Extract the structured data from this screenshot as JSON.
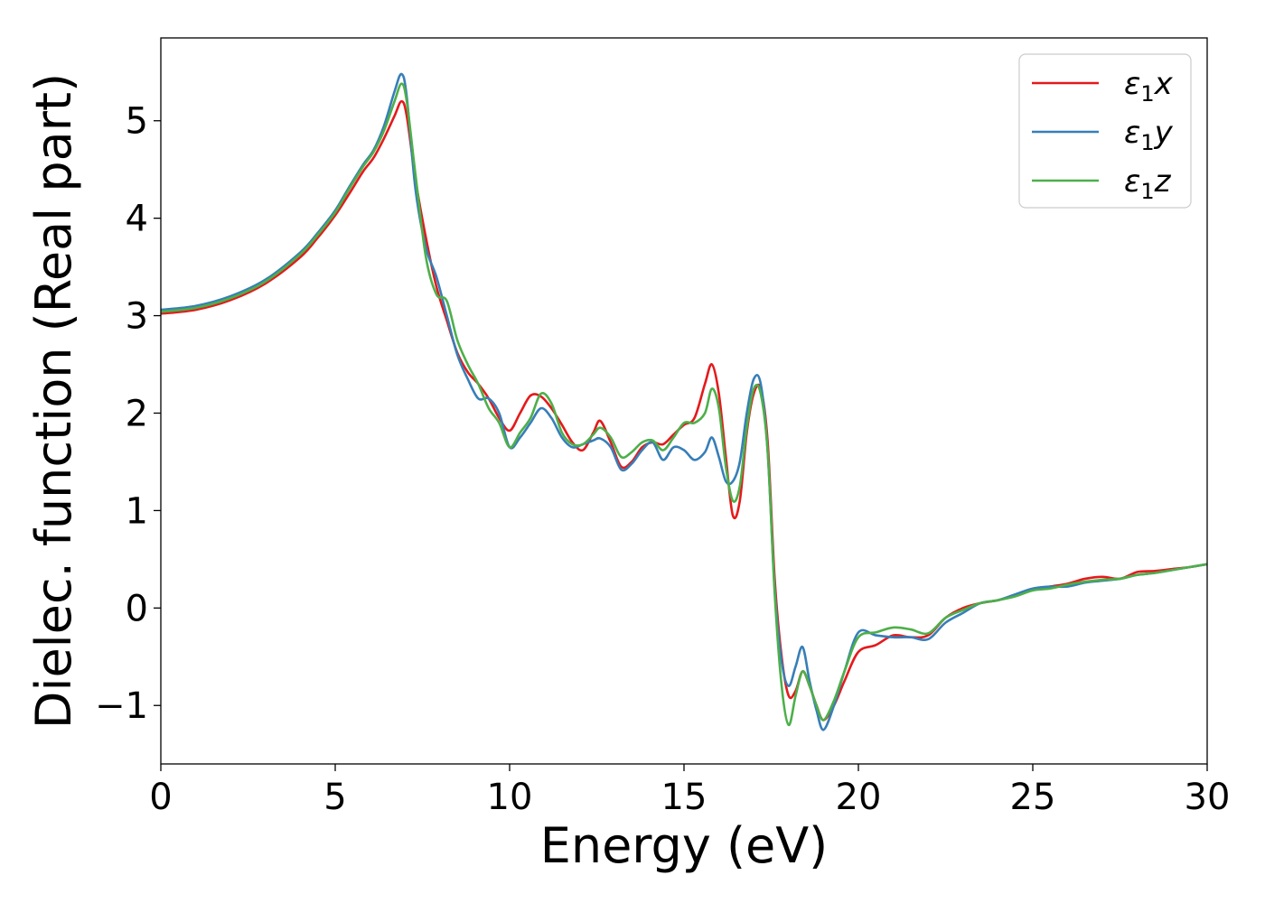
{
  "chart_data": {
    "type": "line",
    "xlabel": "Energy (eV)",
    "ylabel": "Dielec. function (Real part)",
    "xlim": [
      0,
      30
    ],
    "ylim": [
      -1.6,
      5.85
    ],
    "xticks": [
      0,
      5,
      10,
      15,
      20,
      25,
      30
    ],
    "xtick_labels": [
      "0",
      "5",
      "10",
      "15",
      "20",
      "25",
      "30"
    ],
    "yticks": [
      -1,
      0,
      1,
      2,
      3,
      4,
      5
    ],
    "ytick_labels": [
      "−1",
      "0",
      "1",
      "2",
      "3",
      "4",
      "5"
    ],
    "grid": false,
    "legend_position": "top-right",
    "series": [
      {
        "name": "ε₁x",
        "legend_base": "ε",
        "legend_sub": "1",
        "legend_suffix": "x",
        "color": "#e41a1c",
        "x": [
          0,
          1,
          2,
          3,
          4,
          4.5,
          5,
          5.4,
          5.8,
          6.1,
          6.4,
          6.7,
          6.9,
          7.05,
          7.3,
          7.6,
          7.9,
          8.2,
          8.5,
          8.8,
          9.1,
          9.4,
          9.7,
          10.0,
          10.3,
          10.6,
          10.9,
          11.2,
          11.5,
          11.8,
          12.1,
          12.4,
          12.6,
          12.9,
          13.2,
          13.5,
          13.8,
          14.1,
          14.4,
          14.7,
          15.0,
          15.3,
          15.6,
          15.8,
          16.0,
          16.2,
          16.4,
          16.6,
          16.8,
          17.0,
          17.2,
          17.4,
          17.6,
          17.8,
          18.0,
          18.2,
          18.4,
          18.6,
          18.8,
          19.0,
          19.3,
          19.6,
          20.0,
          20.5,
          21.0,
          21.5,
          22.0,
          22.5,
          23.0,
          23.5,
          24.0,
          24.5,
          25.0,
          25.5,
          26.0,
          26.5,
          27.0,
          27.5,
          28.0,
          28.5,
          29.0,
          29.5,
          30.0
        ],
        "y": [
          3.02,
          3.06,
          3.16,
          3.33,
          3.6,
          3.8,
          4.03,
          4.25,
          4.48,
          4.62,
          4.82,
          5.05,
          5.2,
          5.05,
          4.4,
          3.8,
          3.3,
          2.95,
          2.62,
          2.42,
          2.3,
          2.15,
          1.95,
          1.82,
          2.0,
          2.18,
          2.17,
          2.05,
          1.88,
          1.7,
          1.62,
          1.8,
          1.92,
          1.7,
          1.45,
          1.5,
          1.65,
          1.7,
          1.68,
          1.78,
          1.88,
          1.95,
          2.3,
          2.5,
          2.2,
          1.55,
          0.95,
          1.1,
          1.8,
          2.2,
          2.25,
          1.7,
          0.3,
          -0.5,
          -0.9,
          -0.85,
          -0.65,
          -0.8,
          -1.0,
          -1.15,
          -1.0,
          -0.75,
          -0.45,
          -0.38,
          -0.28,
          -0.3,
          -0.28,
          -0.1,
          0.0,
          0.05,
          0.08,
          0.13,
          0.19,
          0.22,
          0.25,
          0.3,
          0.32,
          0.3,
          0.37,
          0.38,
          0.4,
          0.42,
          0.45
        ]
      },
      {
        "name": "ε₁y",
        "legend_base": "ε",
        "legend_sub": "1",
        "legend_suffix": "y",
        "color": "#377eb8",
        "x": [
          0,
          1,
          2,
          3,
          4,
          4.5,
          5,
          5.4,
          5.8,
          6.1,
          6.4,
          6.7,
          6.9,
          7.05,
          7.3,
          7.6,
          7.9,
          8.2,
          8.5,
          8.8,
          9.1,
          9.4,
          9.7,
          10.0,
          10.3,
          10.6,
          10.9,
          11.2,
          11.5,
          11.8,
          12.1,
          12.4,
          12.6,
          12.9,
          13.2,
          13.5,
          13.8,
          14.1,
          14.4,
          14.7,
          15.0,
          15.3,
          15.6,
          15.8,
          16.0,
          16.2,
          16.4,
          16.6,
          16.8,
          17.0,
          17.2,
          17.4,
          17.6,
          17.8,
          18.0,
          18.2,
          18.4,
          18.6,
          18.8,
          19.0,
          19.3,
          19.6,
          20.0,
          20.5,
          21.0,
          21.5,
          22.0,
          22.5,
          23.0,
          23.5,
          24.0,
          24.5,
          25.0,
          25.5,
          26.0,
          26.5,
          27.0,
          27.5,
          28.0,
          28.5,
          29.0,
          29.5,
          30.0
        ],
        "y": [
          3.06,
          3.1,
          3.2,
          3.37,
          3.65,
          3.85,
          4.08,
          4.32,
          4.55,
          4.7,
          4.95,
          5.3,
          5.48,
          5.25,
          4.3,
          3.7,
          3.4,
          3.0,
          2.6,
          2.35,
          2.15,
          2.15,
          2.0,
          1.65,
          1.75,
          1.9,
          2.05,
          1.95,
          1.75,
          1.65,
          1.68,
          1.72,
          1.74,
          1.65,
          1.42,
          1.48,
          1.62,
          1.7,
          1.52,
          1.65,
          1.62,
          1.52,
          1.6,
          1.75,
          1.55,
          1.3,
          1.3,
          1.5,
          2.0,
          2.35,
          2.3,
          1.6,
          0.2,
          -0.55,
          -0.8,
          -0.6,
          -0.4,
          -0.75,
          -1.05,
          -1.25,
          -1.0,
          -0.65,
          -0.25,
          -0.28,
          -0.3,
          -0.3,
          -0.32,
          -0.15,
          -0.05,
          0.05,
          0.08,
          0.14,
          0.2,
          0.22,
          0.22,
          0.26,
          0.28,
          0.3,
          0.34,
          0.36,
          0.39,
          0.42,
          0.45
        ]
      },
      {
        "name": "ε₁z",
        "legend_base": "ε",
        "legend_sub": "1",
        "legend_suffix": "z",
        "color": "#4daf4a",
        "x": [
          0,
          1,
          2,
          3,
          4,
          4.5,
          5,
          5.4,
          5.8,
          6.1,
          6.4,
          6.7,
          6.9,
          7.05,
          7.3,
          7.6,
          7.9,
          8.2,
          8.5,
          8.8,
          9.1,
          9.4,
          9.7,
          10.0,
          10.3,
          10.6,
          10.9,
          11.2,
          11.5,
          11.8,
          12.1,
          12.4,
          12.6,
          12.9,
          13.2,
          13.5,
          13.8,
          14.1,
          14.4,
          14.7,
          15.0,
          15.3,
          15.6,
          15.8,
          16.0,
          16.2,
          16.4,
          16.6,
          16.8,
          17.0,
          17.2,
          17.4,
          17.6,
          17.8,
          18.0,
          18.2,
          18.4,
          18.6,
          18.8,
          19.0,
          19.3,
          19.6,
          20.0,
          20.5,
          21.0,
          21.5,
          22.0,
          22.5,
          23.0,
          23.5,
          24.0,
          24.5,
          25.0,
          25.5,
          26.0,
          26.5,
          27.0,
          27.5,
          28.0,
          28.5,
          29.0,
          29.5,
          30.0
        ],
        "y": [
          3.04,
          3.08,
          3.18,
          3.35,
          3.63,
          3.83,
          4.06,
          4.3,
          4.53,
          4.68,
          4.9,
          5.2,
          5.38,
          5.2,
          4.45,
          3.6,
          3.22,
          3.15,
          2.75,
          2.5,
          2.3,
          2.05,
          1.9,
          1.65,
          1.8,
          1.95,
          2.2,
          2.1,
          1.8,
          1.68,
          1.68,
          1.78,
          1.85,
          1.75,
          1.55,
          1.6,
          1.7,
          1.72,
          1.62,
          1.75,
          1.9,
          1.9,
          2.0,
          2.25,
          2.05,
          1.45,
          1.1,
          1.25,
          1.85,
          2.25,
          2.2,
          1.6,
          0.15,
          -0.8,
          -1.2,
          -0.9,
          -0.65,
          -0.8,
          -1.0,
          -1.15,
          -0.95,
          -0.65,
          -0.3,
          -0.25,
          -0.2,
          -0.22,
          -0.26,
          -0.1,
          -0.02,
          0.05,
          0.08,
          0.12,
          0.18,
          0.2,
          0.24,
          0.27,
          0.29,
          0.3,
          0.34,
          0.36,
          0.39,
          0.42,
          0.45
        ]
      }
    ]
  }
}
